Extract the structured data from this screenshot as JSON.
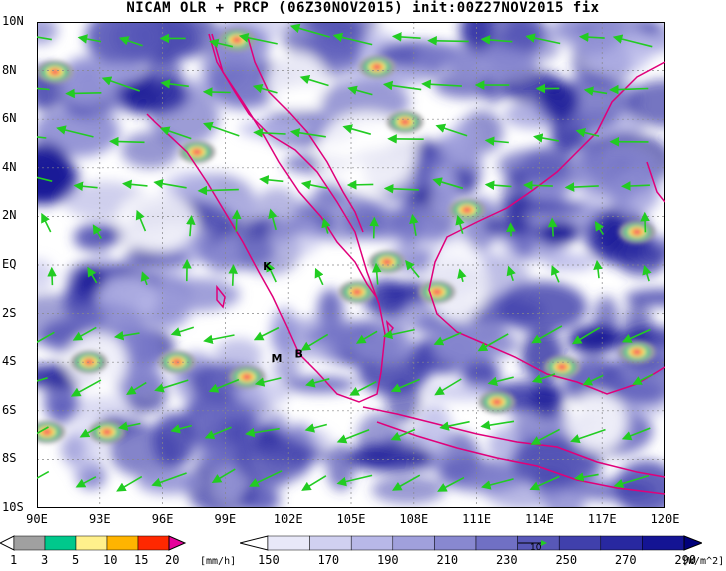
{
  "title": "NICAM OLR + PRCP (06Z30NOV2015) init:00Z27NOV2015 fix",
  "map": {
    "lon_labels": [
      "90E",
      "93E",
      "96E",
      "99E",
      "102E",
      "105E",
      "108E",
      "111E",
      "114E",
      "117E",
      "120E"
    ],
    "lat_labels": [
      "10N",
      "8N",
      "6N",
      "4N",
      "2N",
      "EQ",
      "2S",
      "4S",
      "6S",
      "8S",
      "10S"
    ],
    "extent": {
      "lon_min": 90,
      "lon_max": 120,
      "lat_min": -10,
      "lat_max": 10
    },
    "sites": [
      {
        "label": "K",
        "lon": 100.8,
        "lat": -0.2
      },
      {
        "label": "M",
        "lon": 101.2,
        "lat": -4.0
      },
      {
        "label": "B",
        "lon": 102.3,
        "lat": -3.8
      }
    ],
    "colors": {
      "coastline": "#e0007a",
      "wind_vector": "#22cc22",
      "grid": "#888888"
    }
  },
  "prcp_colorbar": {
    "ticks": [
      "1",
      "3",
      "5",
      "10",
      "15",
      "20"
    ],
    "unit": "[mm/h]",
    "colors": [
      "#ffffff",
      "#a0a0a0",
      "#00c88c",
      "#fff08c",
      "#ffb400",
      "#ff2800",
      "#e6009b"
    ]
  },
  "olr_colorbar": {
    "ticks": [
      "150",
      "170",
      "190",
      "210",
      "230",
      "250",
      "270",
      "290"
    ],
    "unit": "[W/m^2]",
    "reference_vector_label": "10",
    "colors": [
      "#ffffff",
      "#e8e8f8",
      "#d0d0f0",
      "#b8b8e8",
      "#a0a0dc",
      "#8888d0",
      "#7070c4",
      "#5858b8",
      "#4040ac",
      "#2828a0",
      "#141494",
      "#00007a"
    ]
  }
}
